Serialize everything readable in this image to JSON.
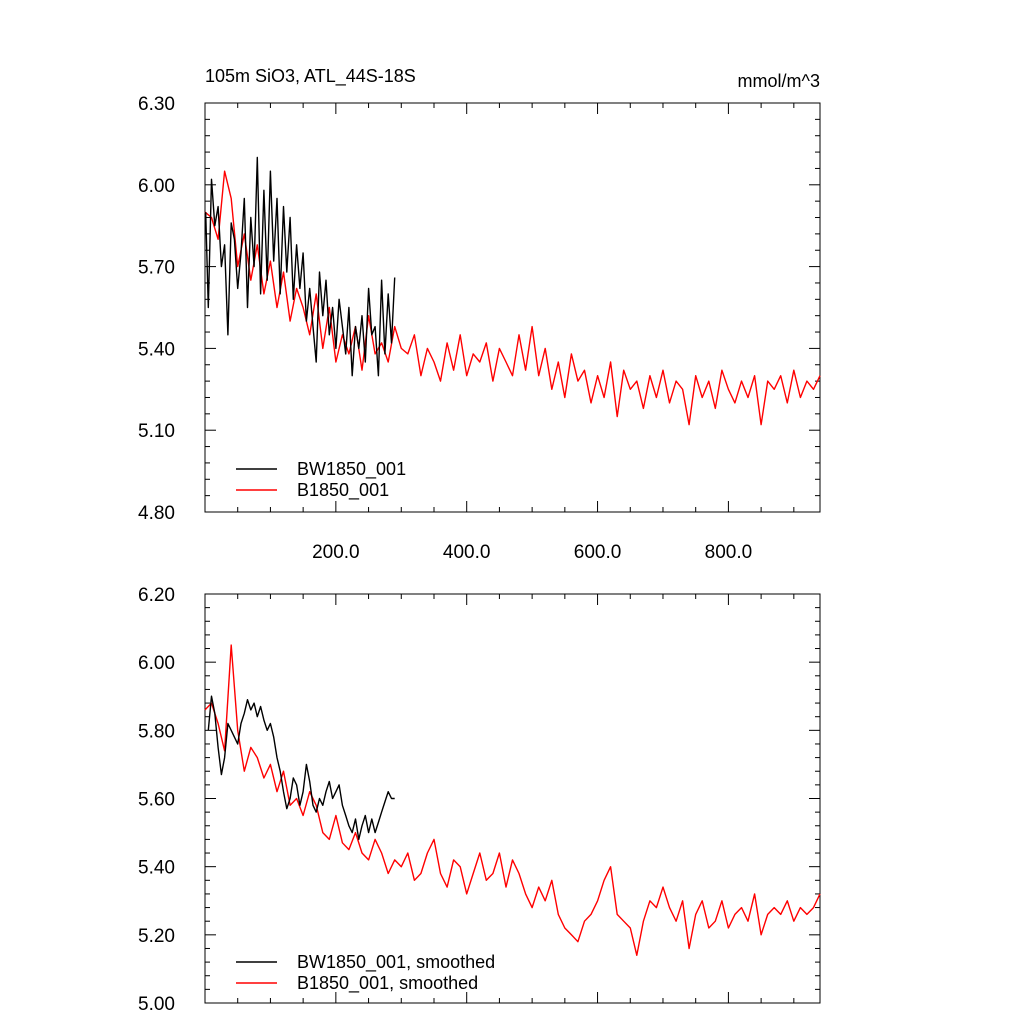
{
  "figure": {
    "left_title": "105m SiO3, ATL_44S-18S",
    "right_title": "mmol/m^3"
  },
  "chart_data": [
    {
      "type": "line",
      "title": "105m SiO3, ATL_44S-18S",
      "units": "mmol/m^3",
      "xlim": [
        0,
        940
      ],
      "ylim": [
        4.8,
        6.3
      ],
      "x_ticks": [
        200,
        400,
        600,
        800
      ],
      "x_tick_labels": [
        "200.0",
        "400.0",
        "600.0",
        "800.0"
      ],
      "y_ticks": [
        4.8,
        5.1,
        5.4,
        5.7,
        6.0,
        6.3
      ],
      "y_tick_labels": [
        "4.80",
        "5.10",
        "5.40",
        "5.70",
        "6.00",
        "6.30"
      ],
      "legend_position": "bottom-left",
      "series": [
        {
          "name": "BW1850_001",
          "color": "#000000",
          "x": [
            1,
            5,
            10,
            15,
            20,
            25,
            30,
            35,
            40,
            45,
            50,
            55,
            60,
            65,
            70,
            75,
            80,
            85,
            90,
            95,
            100,
            105,
            110,
            115,
            120,
            125,
            130,
            135,
            140,
            145,
            150,
            155,
            160,
            165,
            170,
            175,
            180,
            185,
            190,
            195,
            200,
            205,
            210,
            215,
            220,
            225,
            230,
            235,
            240,
            245,
            250,
            255,
            260,
            265,
            270,
            275,
            280,
            285,
            290
          ],
          "y": [
            5.9,
            5.55,
            6.02,
            5.85,
            5.92,
            5.7,
            5.78,
            5.45,
            5.86,
            5.8,
            5.62,
            5.75,
            5.95,
            5.55,
            5.88,
            5.7,
            6.1,
            5.6,
            5.98,
            5.65,
            6.05,
            5.72,
            5.95,
            5.6,
            5.92,
            5.68,
            5.88,
            5.58,
            5.78,
            5.62,
            5.75,
            5.5,
            5.62,
            5.48,
            5.35,
            5.68,
            5.52,
            5.65,
            5.45,
            5.55,
            5.4,
            5.58,
            5.48,
            5.38,
            5.55,
            5.3,
            5.48,
            5.4,
            5.52,
            5.35,
            5.62,
            5.45,
            5.48,
            5.3,
            5.65,
            5.38,
            5.6,
            5.42,
            5.66
          ]
        },
        {
          "name": "B1850_001",
          "color": "#ff0000",
          "x": [
            0,
            10,
            20,
            30,
            40,
            50,
            60,
            70,
            80,
            90,
            100,
            110,
            120,
            130,
            140,
            150,
            160,
            170,
            180,
            190,
            200,
            210,
            220,
            230,
            240,
            250,
            260,
            270,
            280,
            290,
            300,
            310,
            320,
            330,
            340,
            350,
            360,
            370,
            380,
            390,
            400,
            410,
            420,
            430,
            440,
            450,
            460,
            470,
            480,
            490,
            500,
            510,
            520,
            530,
            540,
            550,
            560,
            570,
            580,
            590,
            600,
            610,
            620,
            630,
            640,
            650,
            660,
            670,
            680,
            690,
            700,
            710,
            720,
            730,
            740,
            750,
            760,
            770,
            780,
            790,
            800,
            810,
            820,
            830,
            840,
            850,
            860,
            870,
            880,
            890,
            900,
            910,
            920,
            930,
            940
          ],
          "y": [
            5.9,
            5.88,
            5.8,
            6.05,
            5.95,
            5.7,
            5.82,
            5.65,
            5.78,
            5.6,
            5.72,
            5.55,
            5.68,
            5.5,
            5.62,
            5.55,
            5.45,
            5.6,
            5.4,
            5.55,
            5.35,
            5.45,
            5.38,
            5.48,
            5.32,
            5.52,
            5.38,
            5.42,
            5.35,
            5.48,
            5.4,
            5.38,
            5.45,
            5.3,
            5.4,
            5.35,
            5.28,
            5.42,
            5.32,
            5.45,
            5.3,
            5.38,
            5.35,
            5.42,
            5.28,
            5.4,
            5.35,
            5.3,
            5.45,
            5.32,
            5.48,
            5.3,
            5.4,
            5.25,
            5.35,
            5.22,
            5.38,
            5.28,
            5.32,
            5.2,
            5.3,
            5.22,
            5.35,
            5.15,
            5.32,
            5.25,
            5.28,
            5.18,
            5.3,
            5.22,
            5.32,
            5.2,
            5.28,
            5.25,
            5.12,
            5.3,
            5.22,
            5.28,
            5.18,
            5.32,
            5.25,
            5.2,
            5.28,
            5.22,
            5.3,
            5.12,
            5.28,
            5.25,
            5.3,
            5.2,
            5.32,
            5.22,
            5.28,
            5.25,
            5.3
          ]
        }
      ]
    },
    {
      "type": "line",
      "xlim": [
        0,
        940
      ],
      "ylim": [
        5.0,
        6.2
      ],
      "y_ticks": [
        5.0,
        5.2,
        5.4,
        5.6,
        5.8,
        6.0,
        6.2
      ],
      "y_tick_labels": [
        "5.00",
        "5.20",
        "5.40",
        "5.60",
        "5.80",
        "6.00",
        "6.20"
      ],
      "x_ticks": [
        200,
        400,
        600,
        800
      ],
      "legend_position": "bottom-left",
      "series": [
        {
          "name": "BW1850_001, smoothed",
          "color": "#000000",
          "x": [
            5,
            10,
            15,
            20,
            25,
            30,
            35,
            40,
            45,
            50,
            55,
            60,
            65,
            70,
            75,
            80,
            85,
            90,
            95,
            100,
            105,
            110,
            115,
            120,
            125,
            130,
            135,
            140,
            145,
            150,
            155,
            160,
            165,
            170,
            175,
            180,
            185,
            190,
            195,
            200,
            205,
            210,
            215,
            220,
            225,
            230,
            235,
            240,
            245,
            250,
            255,
            260,
            265,
            270,
            275,
            280,
            285,
            290
          ],
          "y": [
            5.8,
            5.9,
            5.85,
            5.75,
            5.67,
            5.72,
            5.82,
            5.8,
            5.78,
            5.76,
            5.82,
            5.85,
            5.89,
            5.86,
            5.88,
            5.84,
            5.87,
            5.83,
            5.8,
            5.82,
            5.78,
            5.72,
            5.68,
            5.62,
            5.57,
            5.6,
            5.66,
            5.64,
            5.58,
            5.62,
            5.7,
            5.65,
            5.58,
            5.56,
            5.6,
            5.58,
            5.62,
            5.65,
            5.6,
            5.62,
            5.64,
            5.58,
            5.55,
            5.52,
            5.5,
            5.54,
            5.48,
            5.52,
            5.55,
            5.5,
            5.54,
            5.5,
            5.53,
            5.56,
            5.59,
            5.62,
            5.6,
            5.6
          ]
        },
        {
          "name": "B1850_001, smoothed",
          "color": "#ff0000",
          "x": [
            0,
            10,
            20,
            30,
            40,
            50,
            60,
            70,
            80,
            90,
            100,
            110,
            120,
            130,
            140,
            150,
            160,
            170,
            180,
            190,
            200,
            210,
            220,
            230,
            240,
            250,
            260,
            270,
            280,
            290,
            300,
            310,
            320,
            330,
            340,
            350,
            360,
            370,
            380,
            390,
            400,
            410,
            420,
            430,
            440,
            450,
            460,
            470,
            480,
            490,
            500,
            510,
            520,
            530,
            540,
            550,
            560,
            570,
            580,
            590,
            600,
            610,
            620,
            630,
            640,
            650,
            660,
            670,
            680,
            690,
            700,
            710,
            720,
            730,
            740,
            750,
            760,
            770,
            780,
            790,
            800,
            810,
            820,
            830,
            840,
            850,
            860,
            870,
            880,
            890,
            900,
            910,
            920,
            930,
            940
          ],
          "y": [
            5.86,
            5.88,
            5.82,
            5.74,
            6.05,
            5.8,
            5.68,
            5.75,
            5.72,
            5.66,
            5.7,
            5.62,
            5.68,
            5.58,
            5.6,
            5.55,
            5.62,
            5.58,
            5.5,
            5.48,
            5.55,
            5.47,
            5.45,
            5.5,
            5.44,
            5.42,
            5.48,
            5.44,
            5.38,
            5.42,
            5.4,
            5.44,
            5.36,
            5.38,
            5.44,
            5.48,
            5.38,
            5.34,
            5.42,
            5.4,
            5.32,
            5.38,
            5.44,
            5.36,
            5.38,
            5.44,
            5.34,
            5.42,
            5.38,
            5.32,
            5.28,
            5.34,
            5.3,
            5.36,
            5.26,
            5.22,
            5.2,
            5.18,
            5.24,
            5.26,
            5.3,
            5.36,
            5.4,
            5.26,
            5.24,
            5.22,
            5.14,
            5.24,
            5.3,
            5.28,
            5.34,
            5.28,
            5.24,
            5.3,
            5.16,
            5.26,
            5.3,
            5.22,
            5.24,
            5.3,
            5.22,
            5.26,
            5.28,
            5.24,
            5.32,
            5.2,
            5.26,
            5.28,
            5.26,
            5.3,
            5.24,
            5.28,
            5.26,
            5.28,
            5.32
          ]
        }
      ]
    }
  ]
}
